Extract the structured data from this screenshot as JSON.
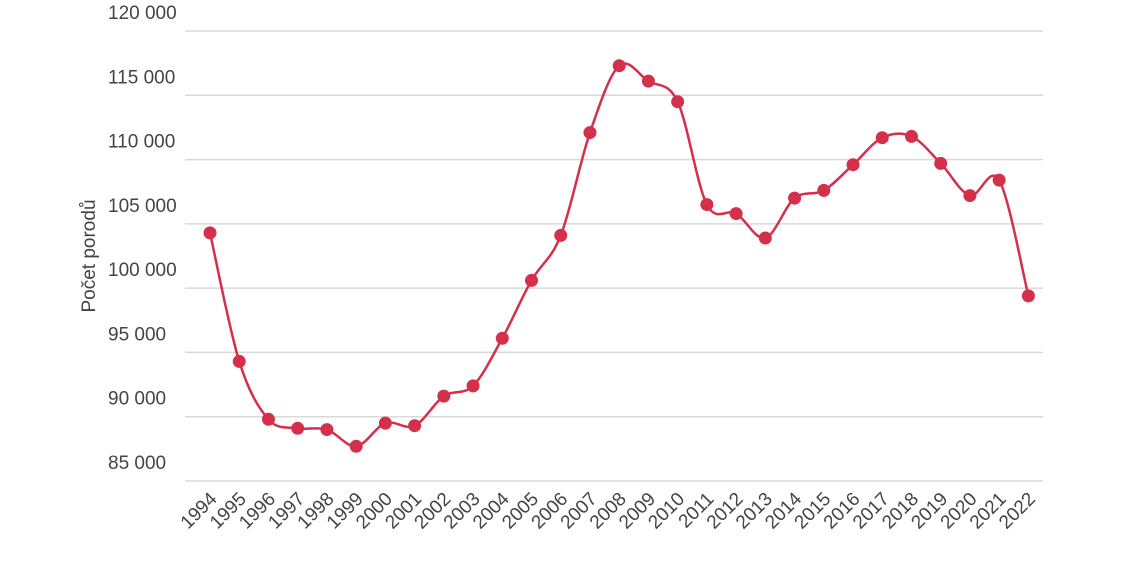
{
  "chart_data": {
    "type": "line",
    "y_label": "Počet porodů",
    "categories": [
      "1994",
      "1995",
      "1996",
      "1997",
      "1998",
      "1999",
      "2000",
      "2001",
      "2002",
      "2003",
      "2004",
      "2005",
      "2006",
      "2007",
      "2008",
      "2009",
      "2010",
      "2011",
      "2012",
      "2013",
      "2014",
      "2015",
      "2016",
      "2017",
      "2018",
      "2019",
      "2020",
      "2021",
      "2022"
    ],
    "series": [
      {
        "color": "#d42f4b",
        "values": [
          104300,
          94300,
          89800,
          89100,
          89000,
          87700,
          89500,
          89300,
          91600,
          92400,
          96100,
          100600,
          104100,
          112100,
          117300,
          116100,
          114500,
          106500,
          105800,
          103900,
          107000,
          107600,
          109600,
          111700,
          111800,
          109700,
          107200,
          108400,
          99400
        ]
      }
    ],
    "ylim": [
      85000,
      120000
    ],
    "yticks": [
      {
        "value": 85000,
        "label": "85 000"
      },
      {
        "value": 90000,
        "label": "90 000"
      },
      {
        "value": 95000,
        "label": "95 000"
      },
      {
        "value": 100000,
        "label": "100 000"
      },
      {
        "value": 105000,
        "label": "105 000"
      },
      {
        "value": 110000,
        "label": "110 000"
      },
      {
        "value": 115000,
        "label": "115 000"
      },
      {
        "value": 120000,
        "label": "120 000"
      }
    ],
    "grid": true
  }
}
